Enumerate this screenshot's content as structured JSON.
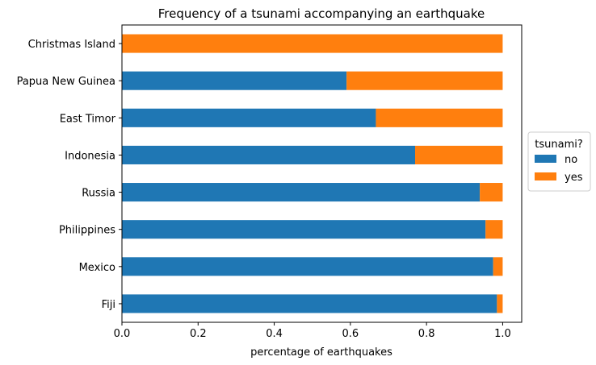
{
  "chart_data": {
    "type": "bar",
    "orientation": "horizontal",
    "stacked": true,
    "title": "Frequency of a tsunami accompanying an earthquake",
    "xlabel": "percentage of earthquakes",
    "ylabel": "",
    "xlim": [
      0.0,
      1.05
    ],
    "xticks": [
      "0.0",
      "0.2",
      "0.4",
      "0.6",
      "0.8",
      "1.0"
    ],
    "categories": [
      "Christmas Island",
      "Papua New Guinea",
      "East Timor",
      "Indonesia",
      "Russia",
      "Philippines",
      "Mexico",
      "Fiji"
    ],
    "series": [
      {
        "name": "no",
        "color": "#1f77b4",
        "values": [
          0.0,
          0.59,
          0.667,
          0.77,
          0.94,
          0.955,
          0.975,
          0.985
        ]
      },
      {
        "name": "yes",
        "color": "#ff7f0e",
        "values": [
          1.0,
          0.41,
          0.333,
          0.23,
          0.06,
          0.045,
          0.025,
          0.015
        ]
      }
    ],
    "legend": {
      "title": "tsunami?",
      "placement": "center-right outside"
    },
    "grid": false
  }
}
